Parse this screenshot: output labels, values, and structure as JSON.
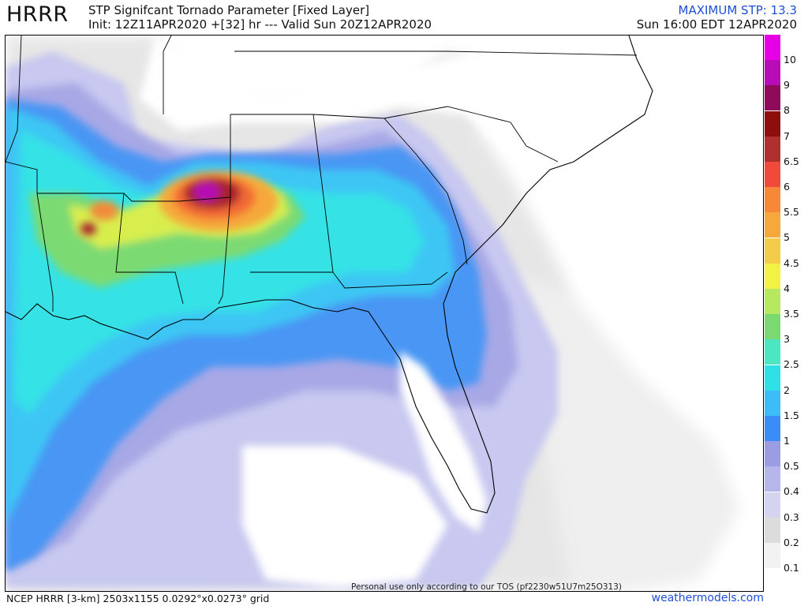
{
  "header": {
    "model": "HRRR",
    "title": "STP Signifcant Tornado Parameter [Fixed Layer]",
    "init_line": "Init: 12Z11APR2020 +[32] hr --- Valid Sun 20Z12APR2020",
    "max_stp": "MAXIMUM STP: 13.3",
    "local_time": "Sun 16:00 EDT 12APR2020"
  },
  "footer": {
    "grid_info": "NCEP HRRR [3-km] 2503x1155 0.0292°x0.0273° grid",
    "tos": "Personal use only according to our TOS (pf2230w51U7m25O313)",
    "site": "weathermodels.com"
  },
  "legend": {
    "items": [
      {
        "label": "10",
        "color": "#e600e6"
      },
      {
        "label": "9",
        "color": "#b80cb8"
      },
      {
        "label": "8",
        "color": "#900a5a"
      },
      {
        "label": "7",
        "color": "#8e0e0e"
      },
      {
        "label": "6.5",
        "color": "#b03030"
      },
      {
        "label": "6",
        "color": "#f04a3a"
      },
      {
        "label": "5.5",
        "color": "#f88838"
      },
      {
        "label": "5",
        "color": "#f6a83a"
      },
      {
        "label": "4.5",
        "color": "#f5cc4a"
      },
      {
        "label": "4",
        "color": "#f2f245"
      },
      {
        "label": "3.5",
        "color": "#b6e860"
      },
      {
        "label": "3",
        "color": "#7ad970"
      },
      {
        "label": "2.5",
        "color": "#4ce7c2"
      },
      {
        "label": "2",
        "color": "#2ee0e8"
      },
      {
        "label": "1.5",
        "color": "#3cbcf8"
      },
      {
        "label": "1",
        "color": "#3a8cf8"
      },
      {
        "label": "0.5",
        "color": "#9c9ce4"
      },
      {
        "label": "0.4",
        "color": "#b6b6ea"
      },
      {
        "label": "0.3",
        "color": "#d4d4f0"
      },
      {
        "label": "0.2",
        "color": "#dcdcdc"
      },
      {
        "label": "0.1",
        "color": "#f2f2f2"
      }
    ]
  },
  "colors": {
    "accent_blue": "#1e4fd6",
    "border": "#000000",
    "land": "#ffffff"
  }
}
